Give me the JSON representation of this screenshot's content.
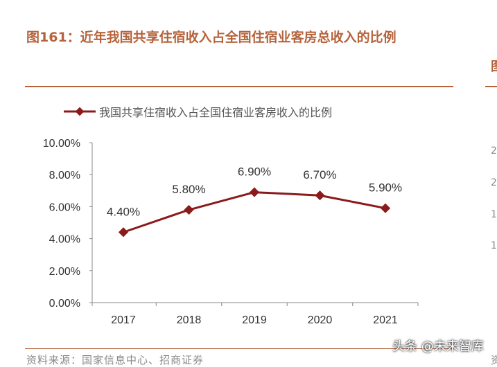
{
  "figure": {
    "title": "图161：近年我国共享住宿收入占全国住宿业客房总收入的比例",
    "source": "资料来源：国家信息中心、招商证券",
    "watermark": "头条 @未来智库"
  },
  "right_panel_fragment": {
    "title_char": "图",
    "ticks": [
      "2",
      "2",
      "1",
      "1"
    ],
    "source_char": "资"
  },
  "colors": {
    "accent": "#b5643c",
    "series": "#8b1a1a",
    "axis": "#888888"
  },
  "chart_data": {
    "type": "line",
    "title": "",
    "xlabel": "",
    "ylabel": "",
    "categories": [
      "2017",
      "2018",
      "2019",
      "2020",
      "2021"
    ],
    "series": [
      {
        "name": "我国共享住宿收入占全国住宿业客房收入的比例",
        "values": [
          4.4,
          5.8,
          6.9,
          6.7,
          5.9
        ],
        "labels": [
          "4.40%",
          "5.80%",
          "6.90%",
          "6.70%",
          "5.90%"
        ]
      }
    ],
    "ylim": [
      0,
      10
    ],
    "yticks": [
      "0.00%",
      "2.00%",
      "4.00%",
      "6.00%",
      "8.00%",
      "10.00%"
    ],
    "legend_position": "top",
    "grid": false
  }
}
